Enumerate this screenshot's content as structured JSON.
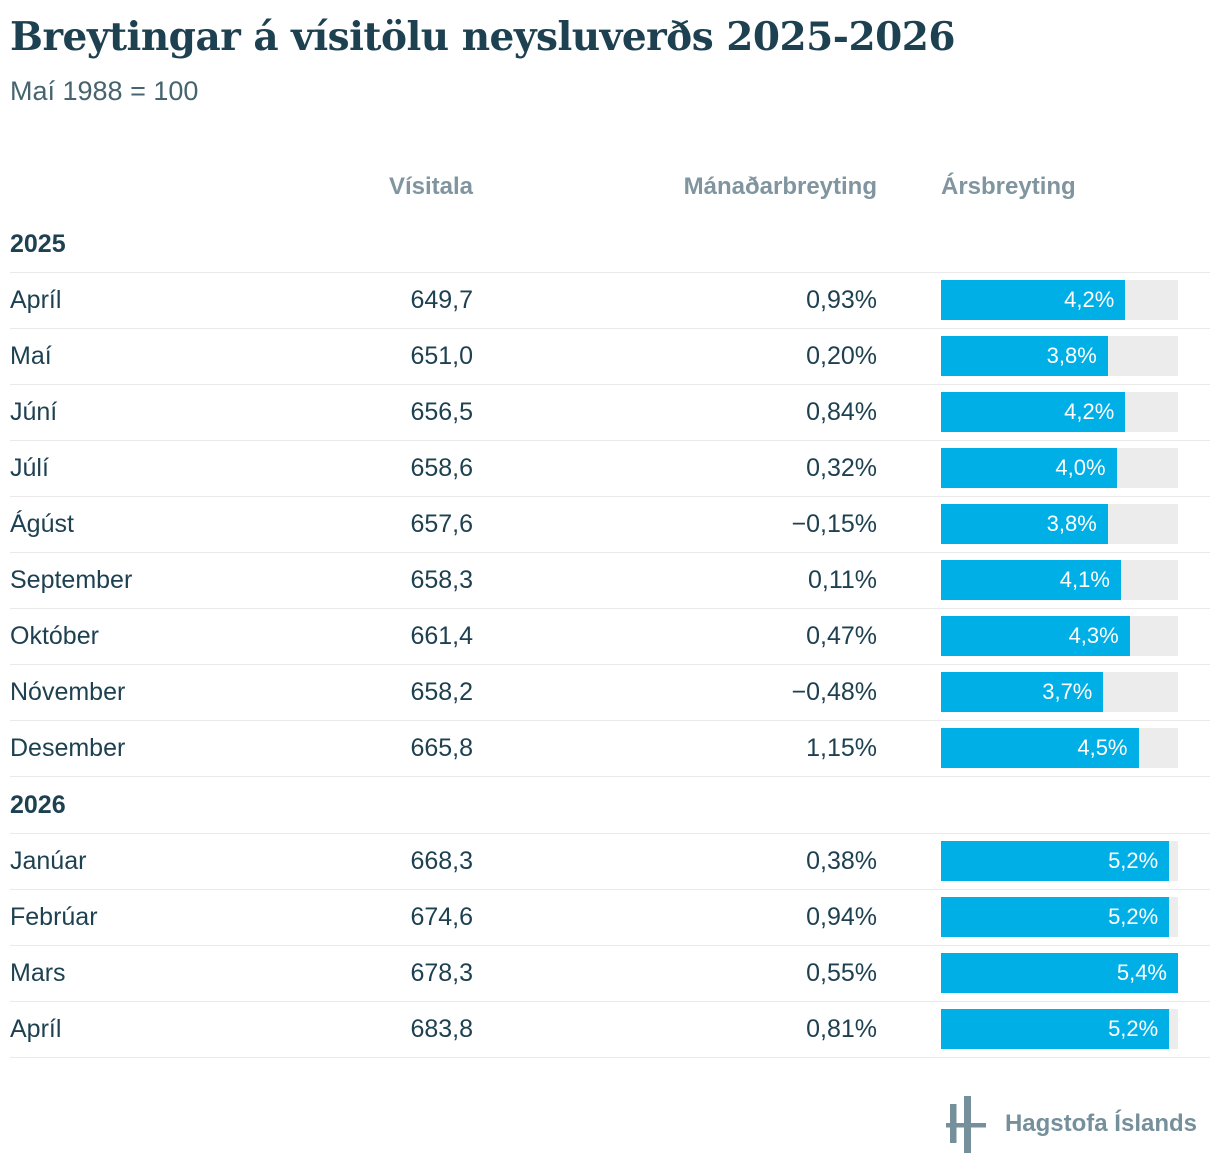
{
  "title": "Breytingar á vísitölu neysluverðs 2025-2026",
  "subtitle": "Maí 1988 = 100",
  "columns": {
    "visitala": "Vísitala",
    "manadarbreyting": "Mánaðarbreyting",
    "arsbreyting": "Ársbreyting"
  },
  "bar_scale_max": 5.4,
  "sections": [
    {
      "year": "2025",
      "rows": [
        {
          "month": "Apríl",
          "visitala": "649,7",
          "monthly": "0,93%",
          "yearly": "4,2%",
          "yearly_value": 4.2
        },
        {
          "month": "Maí",
          "visitala": "651,0",
          "monthly": "0,20%",
          "yearly": "3,8%",
          "yearly_value": 3.8
        },
        {
          "month": "Júní",
          "visitala": "656,5",
          "monthly": "0,84%",
          "yearly": "4,2%",
          "yearly_value": 4.2
        },
        {
          "month": "Júlí",
          "visitala": "658,6",
          "monthly": "0,32%",
          "yearly": "4,0%",
          "yearly_value": 4.0
        },
        {
          "month": "Ágúst",
          "visitala": "657,6",
          "monthly": "−0,15%",
          "yearly": "3,8%",
          "yearly_value": 3.8
        },
        {
          "month": "September",
          "visitala": "658,3",
          "monthly": "0,11%",
          "yearly": "4,1%",
          "yearly_value": 4.1
        },
        {
          "month": "Október",
          "visitala": "661,4",
          "monthly": "0,47%",
          "yearly": "4,3%",
          "yearly_value": 4.3
        },
        {
          "month": "Nóvember",
          "visitala": "658,2",
          "monthly": "−0,48%",
          "yearly": "3,7%",
          "yearly_value": 3.7
        },
        {
          "month": "Desember",
          "visitala": "665,8",
          "monthly": "1,15%",
          "yearly": "4,5%",
          "yearly_value": 4.5
        }
      ]
    },
    {
      "year": "2026",
      "rows": [
        {
          "month": "Janúar",
          "visitala": "668,3",
          "monthly": "0,38%",
          "yearly": "5,2%",
          "yearly_value": 5.2
        },
        {
          "month": "Febrúar",
          "visitala": "674,6",
          "monthly": "0,94%",
          "yearly": "5,2%",
          "yearly_value": 5.2
        },
        {
          "month": "Mars",
          "visitala": "678,3",
          "monthly": "0,55%",
          "yearly": "5,4%",
          "yearly_value": 5.4
        },
        {
          "month": "Apríl",
          "visitala": "683,8",
          "monthly": "0,81%",
          "yearly": "5,2%",
          "yearly_value": 5.2
        }
      ]
    }
  ],
  "footer": {
    "brand": "Hagstofa Íslands"
  },
  "colors": {
    "bar": "#00afe6",
    "bar_track": "#ececec",
    "text_dark": "#1e4151",
    "header_gray": "#80959f",
    "logo_gray": "#76909b",
    "row_border": "#e9e9e9"
  },
  "chart_data": {
    "type": "table",
    "title": "Breytingar á vísitölu neysluverðs 2025-2026",
    "subtitle": "Maí 1988 = 100",
    "columns": [
      "Vísitala",
      "Mánaðarbreyting",
      "Ársbreyting"
    ],
    "bar_column": "Ársbreyting",
    "bar_axis_max": 5.4,
    "sections": [
      {
        "year": 2025,
        "months": [
          "Apríl",
          "Maí",
          "Júní",
          "Júlí",
          "Ágúst",
          "September",
          "Október",
          "Nóvember",
          "Desember"
        ],
        "visitala": [
          649.7,
          651.0,
          656.5,
          658.6,
          657.6,
          658.3,
          661.4,
          658.2,
          665.8
        ],
        "manadarbreyting_pct": [
          0.93,
          0.2,
          0.84,
          0.32,
          -0.15,
          0.11,
          0.47,
          -0.48,
          1.15
        ],
        "arsbreyting_pct": [
          4.2,
          3.8,
          4.2,
          4.0,
          3.8,
          4.1,
          4.3,
          3.7,
          4.5
        ]
      },
      {
        "year": 2026,
        "months": [
          "Janúar",
          "Febrúar",
          "Mars",
          "Apríl"
        ],
        "visitala": [
          668.3,
          674.6,
          678.3,
          683.8
        ],
        "manadarbreyting_pct": [
          0.38,
          0.94,
          0.55,
          0.81
        ],
        "arsbreyting_pct": [
          5.2,
          5.2,
          5.4,
          5.2
        ]
      }
    ]
  }
}
